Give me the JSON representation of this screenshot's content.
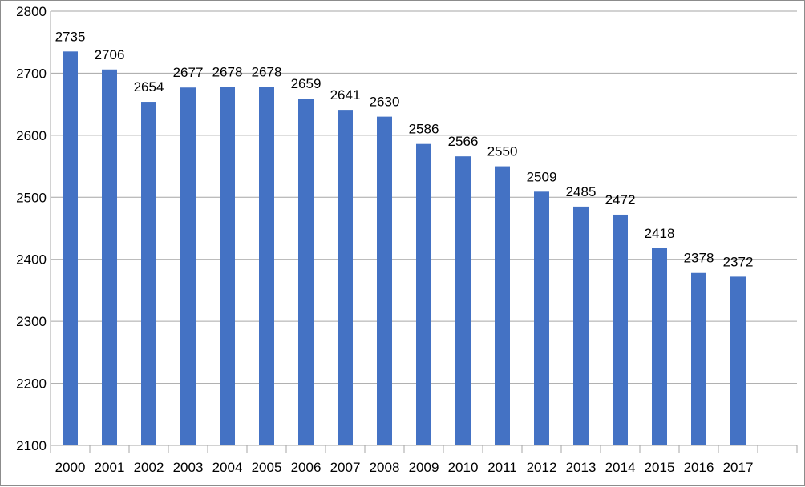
{
  "chart_data": {
    "type": "bar",
    "title": "",
    "xlabel": "",
    "ylabel": "",
    "categories": [
      "2000",
      "2001",
      "2002",
      "2003",
      "2004",
      "2005",
      "2006",
      "2007",
      "2008",
      "2009",
      "2010",
      "2011",
      "2012",
      "2013",
      "2014",
      "2015",
      "2016",
      "2017",
      ""
    ],
    "values": [
      2735,
      2706,
      2654,
      2677,
      2678,
      2678,
      2659,
      2641,
      2630,
      2586,
      2566,
      2550,
      2509,
      2485,
      2472,
      2418,
      2378,
      2372,
      null
    ],
    "ylim": [
      2100,
      2800
    ],
    "y_ticks": [
      2100,
      2200,
      2300,
      2400,
      2500,
      2600,
      2700,
      2800
    ],
    "grid": true,
    "legend": "none",
    "bar_color": "#4472c4",
    "grid_color": "#a6a6a6"
  }
}
